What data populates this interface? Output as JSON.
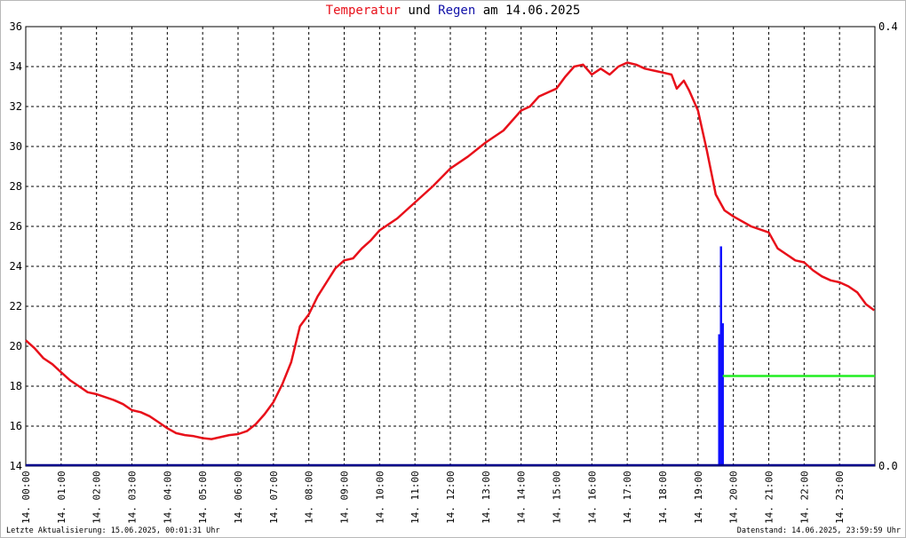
{
  "title": {
    "part1": "Temperatur",
    "part2": "und",
    "part3": "Regen",
    "part4": "am 14.06.2025"
  },
  "footer": {
    "left": "Letzte Aktualisierung: 15.06.2025, 00:01:31 Uhr",
    "right": "Datenstand: 14.06.2025, 23:59:59 Uhr"
  },
  "colors": {
    "temperature": "#e8101a",
    "rain": "#1010ff",
    "rain_total": "#22ee22",
    "baseline": "#00008b",
    "grid": "#000000"
  },
  "chart_data": {
    "type": "line",
    "title": "Temperatur und Regen am 14.06.2025",
    "xlim": [
      0,
      24
    ],
    "ylim": [
      14,
      36
    ],
    "y_ticks": [
      "14",
      "16",
      "18",
      "20",
      "22",
      "24",
      "26",
      "28",
      "30",
      "32",
      "34",
      "36"
    ],
    "y2lim": [
      0,
      0.4
    ],
    "y2_ticks": [
      "0.0",
      "0.4"
    ],
    "x_ticks": [
      "14. 00:00",
      "14. 01:00",
      "14. 02:00",
      "14. 03:00",
      "14. 04:00",
      "14. 05:00",
      "14. 06:00",
      "14. 07:00",
      "14. 08:00",
      "14. 09:00",
      "14. 10:00",
      "14. 11:00",
      "14. 12:00",
      "14. 13:00",
      "14. 14:00",
      "14. 15:00",
      "14. 16:00",
      "14. 17:00",
      "14. 18:00",
      "14. 19:00",
      "14. 20:00",
      "14. 21:00",
      "14. 22:00",
      "14. 23:00"
    ],
    "grid": true,
    "series": [
      {
        "name": "Temperatur",
        "axis": "left",
        "x": [
          0,
          0.25,
          0.5,
          0.75,
          1,
          1.25,
          1.5,
          1.75,
          2,
          2.5,
          2.75,
          3,
          3.25,
          3.5,
          3.75,
          4,
          4.25,
          4.5,
          4.75,
          5,
          5.25,
          5.5,
          5.75,
          6,
          6.25,
          6.5,
          6.75,
          7,
          7.25,
          7.5,
          7.75,
          8,
          8.25,
          8.5,
          8.75,
          9,
          9.25,
          9.5,
          9.75,
          10,
          10.5,
          11,
          11.5,
          12,
          12.5,
          13,
          13.5,
          14,
          14.25,
          14.5,
          14.75,
          15,
          15.25,
          15.5,
          15.75,
          16,
          16.25,
          16.5,
          16.75,
          17,
          17.25,
          17.5,
          17.75,
          18,
          18.25,
          18.4,
          18.6,
          18.75,
          19,
          19.25,
          19.5,
          19.75,
          20,
          20.5,
          21,
          21.25,
          21.5,
          21.75,
          22,
          22.25,
          22.5,
          22.75,
          23,
          23.25,
          23.5,
          23.75,
          23.98
        ],
        "y": [
          20.3,
          19.9,
          19.4,
          19.1,
          18.7,
          18.3,
          18.0,
          17.7,
          17.6,
          17.3,
          17.1,
          16.8,
          16.7,
          16.5,
          16.2,
          15.9,
          15.65,
          15.55,
          15.5,
          15.4,
          15.35,
          15.45,
          15.55,
          15.6,
          15.75,
          16.1,
          16.6,
          17.2,
          18.1,
          19.2,
          21.0,
          21.6,
          22.5,
          23.2,
          23.9,
          24.3,
          24.4,
          24.9,
          25.3,
          25.8,
          26.4,
          27.2,
          28.0,
          28.9,
          29.5,
          30.2,
          30.8,
          31.8,
          32.0,
          32.5,
          32.7,
          32.9,
          33.5,
          34.0,
          34.1,
          33.6,
          33.9,
          33.6,
          34.0,
          34.2,
          34.1,
          33.9,
          33.8,
          33.7,
          33.6,
          32.9,
          33.3,
          32.8,
          31.8,
          29.8,
          27.6,
          26.8,
          26.5,
          26.0,
          25.7,
          24.9,
          24.6,
          24.3,
          24.2,
          23.8,
          23.5,
          23.3,
          23.2,
          23.0,
          22.7,
          22.1,
          21.8
        ]
      },
      {
        "name": "Regen",
        "axis": "right",
        "type": "bar",
        "x": [
          19.6,
          19.65,
          19.7
        ],
        "y": [
          0.12,
          0.2,
          0.13
        ]
      },
      {
        "name": "Regen Summe",
        "axis": "right",
        "x": [
          19.7,
          24
        ],
        "y": [
          0.082,
          0.082
        ]
      }
    ]
  }
}
